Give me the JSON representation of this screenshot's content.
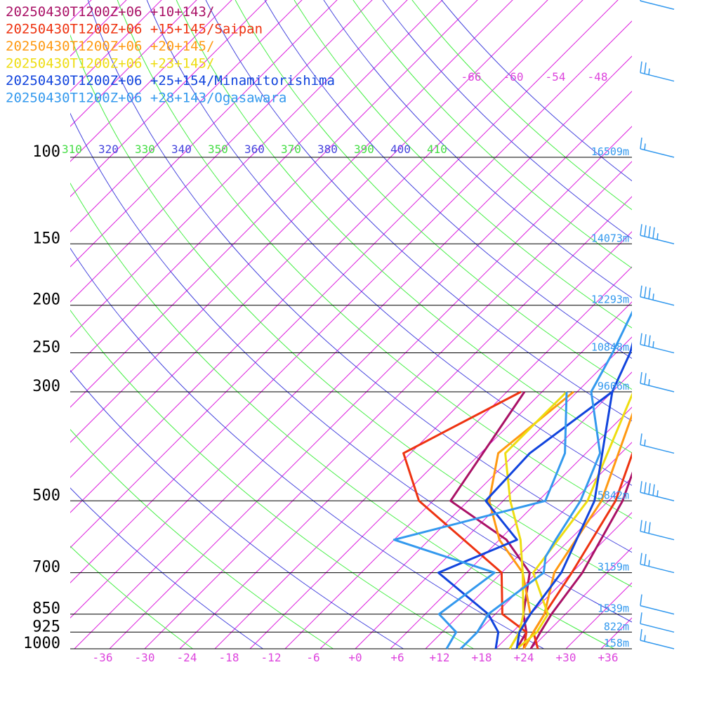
{
  "chart_data": {
    "type": "line",
    "title": "",
    "xlabel": "",
    "ylabel": "",
    "pressure_ticks": [
      100,
      150,
      200,
      250,
      300,
      500,
      700,
      850,
      925,
      1000
    ],
    "pressure_tick_labels": [
      "100",
      "150",
      "200",
      "250",
      "300",
      "500",
      "700",
      "850",
      "925",
      "1000"
    ],
    "height_labels": [
      "16509m",
      "14073m",
      "12293m",
      "10848m",
      "9606m",
      "5842m",
      "3159m",
      "1539m",
      "822m",
      "158m"
    ],
    "temperature_ticks": [
      -36,
      -30,
      -24,
      -18,
      -12,
      -6,
      0,
      6,
      12,
      18,
      24,
      30,
      36
    ],
    "temperature_tick_labels": [
      "-36",
      "-30",
      "-24",
      "-18",
      "-12",
      "-6",
      "+0",
      "+6",
      "+12",
      "+18",
      "+24",
      "+30",
      "+36"
    ],
    "isotherm_top_labels": [
      "-66",
      "-60",
      "-54",
      "-48"
    ],
    "theta_labels": [
      {
        "text": "310",
        "color": "#44dd44"
      },
      {
        "text": "320",
        "color": "#4444dd"
      },
      {
        "text": "330",
        "color": "#44dd44"
      },
      {
        "text": "340",
        "color": "#4444dd"
      },
      {
        "text": "350",
        "color": "#44dd44"
      },
      {
        "text": "360",
        "color": "#4444dd"
      },
      {
        "text": "370",
        "color": "#44dd44"
      },
      {
        "text": "380",
        "color": "#4444dd"
      },
      {
        "text": "390",
        "color": "#44dd44"
      },
      {
        "text": "400",
        "color": "#4444dd"
      },
      {
        "text": "410",
        "color": "#44dd44"
      }
    ],
    "colors": {
      "isotherm": "#dd22dd",
      "isotherm_label": "#dd44dd",
      "theta_green": "#44ee44",
      "theta_blue": "#4444dd",
      "height_label": "#3399ee",
      "wind_barb": "#3399ee",
      "pressure_line": "#000000"
    },
    "series": [
      {
        "label": "20250430T1200Z+06 +10+143/",
        "color": "#aa1166",
        "temperature": [
          [
            1000,
            25
          ],
          [
            925,
            24
          ],
          [
            850,
            23
          ],
          [
            700,
            21.5
          ],
          [
            500,
            17
          ],
          [
            300,
            7
          ],
          [
            250,
            1
          ],
          [
            200,
            -7
          ],
          [
            150,
            -13
          ],
          [
            130,
            -14
          ],
          [
            100,
            -10
          ],
          [
            80,
            -5
          ],
          [
            70,
            0
          ],
          [
            60,
            15
          ],
          [
            50,
            25
          ]
        ],
        "dewpoint": [
          [
            1000,
            23
          ],
          [
            925,
            22
          ],
          [
            850,
            19
          ],
          [
            700,
            14
          ],
          [
            600,
            6
          ],
          [
            500,
            -7.5
          ],
          [
            300,
            -12.5
          ]
        ]
      },
      {
        "label": "20250430T1200Z+06 +15+145/Saipan",
        "color": "#ee3311",
        "temperature": [
          [
            1000,
            26
          ],
          [
            925,
            23
          ],
          [
            850,
            22
          ],
          [
            700,
            20
          ],
          [
            500,
            16
          ],
          [
            300,
            6
          ],
          [
            250,
            0
          ],
          [
            200,
            -7
          ],
          [
            150,
            -12.5
          ],
          [
            130,
            -13
          ],
          [
            100,
            -10
          ],
          [
            80,
            -8
          ],
          [
            70,
            -1
          ],
          [
            60,
            14
          ],
          [
            50,
            26
          ]
        ],
        "dewpoint": [
          [
            1000,
            24
          ],
          [
            925,
            22
          ],
          [
            850,
            16
          ],
          [
            700,
            10
          ],
          [
            500,
            -12
          ],
          [
            400,
            -21
          ],
          [
            300,
            -13
          ]
        ]
      },
      {
        "label": "20250430T1200Z+06 +20+145/",
        "color": "#ff9911",
        "temperature": [
          [
            1000,
            24
          ],
          [
            925,
            23
          ],
          [
            850,
            22
          ],
          [
            700,
            17.5
          ],
          [
            500,
            14
          ],
          [
            300,
            4
          ],
          [
            250,
            -1
          ],
          [
            200,
            -6.5
          ],
          [
            150,
            -9.5
          ],
          [
            130,
            -10.5
          ],
          [
            100,
            -7
          ],
          [
            80,
            -8
          ],
          [
            70,
            1
          ],
          [
            60,
            13
          ],
          [
            50,
            25
          ]
        ],
        "dewpoint": [
          [
            1000,
            22
          ],
          [
            925,
            21
          ],
          [
            850,
            20
          ],
          [
            700,
            13
          ],
          [
            600,
            5
          ],
          [
            500,
            -2
          ],
          [
            400,
            -7.5
          ],
          [
            300,
            -5.5
          ]
        ]
      },
      {
        "label": "20250430T1200Z+06 +23+145/",
        "color": "#eedd11",
        "temperature": [
          [
            1000,
            23
          ],
          [
            925,
            23.5
          ],
          [
            850,
            22.5
          ],
          [
            700,
            14.5
          ],
          [
            500,
            12
          ],
          [
            300,
            3
          ],
          [
            250,
            -2
          ],
          [
            200,
            -6.5
          ],
          [
            150,
            -9
          ],
          [
            120,
            -8
          ],
          [
            100,
            -7
          ],
          [
            80,
            -5
          ],
          [
            70,
            3
          ],
          [
            60,
            13
          ],
          [
            50,
            26
          ]
        ],
        "dewpoint": [
          [
            1000,
            22
          ],
          [
            925,
            21
          ],
          [
            850,
            19
          ],
          [
            700,
            13
          ],
          [
            600,
            8
          ],
          [
            500,
            1
          ],
          [
            400,
            -6.5
          ],
          [
            300,
            -6.5
          ]
        ]
      },
      {
        "label": "20250430T1200Z+06 +25+154/Minamitorishima",
        "color": "#1144dd",
        "temperature": [
          [
            1000,
            23
          ],
          [
            925,
            21
          ],
          [
            850,
            20
          ],
          [
            700,
            18.5
          ],
          [
            500,
            13
          ],
          [
            300,
            0
          ],
          [
            250,
            -3
          ],
          [
            200,
            -8
          ],
          [
            160,
            -10
          ],
          [
            150,
            -8.5
          ],
          [
            100,
            -3
          ],
          [
            80,
            -1
          ],
          [
            70,
            5
          ],
          [
            60,
            17
          ],
          [
            50,
            28
          ]
        ],
        "dewpoint": [
          [
            1000,
            20
          ],
          [
            925,
            18
          ],
          [
            850,
            14
          ],
          [
            700,
            1
          ],
          [
            600,
            7.5
          ],
          [
            500,
            -2.5
          ],
          [
            400,
            -3
          ],
          [
            300,
            0
          ]
        ]
      },
      {
        "label": "20250430T1200Z+06 +28+143/Ogasawara",
        "color": "#3399ee",
        "temperature": [
          [
            1000,
            15
          ],
          [
            925,
            15
          ],
          [
            850,
            14
          ],
          [
            700,
            16
          ],
          [
            650,
            14
          ],
          [
            600,
            13
          ],
          [
            500,
            11
          ],
          [
            400,
            7
          ],
          [
            300,
            -3
          ],
          [
            250,
            -5.5
          ],
          [
            200,
            -9
          ],
          [
            150,
            -7
          ],
          [
            100,
            -2
          ],
          [
            80,
            1
          ],
          [
            70,
            8
          ],
          [
            60,
            17
          ],
          [
            50,
            30
          ]
        ],
        "dewpoint": [
          [
            1000,
            13
          ],
          [
            925,
            12
          ],
          [
            850,
            7
          ],
          [
            700,
            9
          ],
          [
            600,
            -10
          ],
          [
            500,
            6
          ],
          [
            400,
            2
          ],
          [
            300,
            -6.5
          ]
        ]
      }
    ],
    "wind_barbs": [
      {
        "pressure": 1000,
        "speed_kt": 15
      },
      {
        "pressure": 925,
        "speed_kt": 10
      },
      {
        "pressure": 850,
        "speed_kt": 10
      },
      {
        "pressure": 700,
        "speed_kt": 25
      },
      {
        "pressure": 600,
        "speed_kt": 30
      },
      {
        "pressure": 500,
        "speed_kt": 45
      },
      {
        "pressure": 400,
        "speed_kt": 15
      },
      {
        "pressure": 300,
        "speed_kt": 25
      },
      {
        "pressure": 250,
        "speed_kt": 35
      },
      {
        "pressure": 200,
        "speed_kt": 35
      },
      {
        "pressure": 150,
        "speed_kt": 45
      },
      {
        "pressure": 100,
        "speed_kt": 15
      },
      {
        "pressure": 70,
        "speed_kt": 25
      },
      {
        "pressure": 50,
        "speed_kt": 5
      }
    ]
  }
}
